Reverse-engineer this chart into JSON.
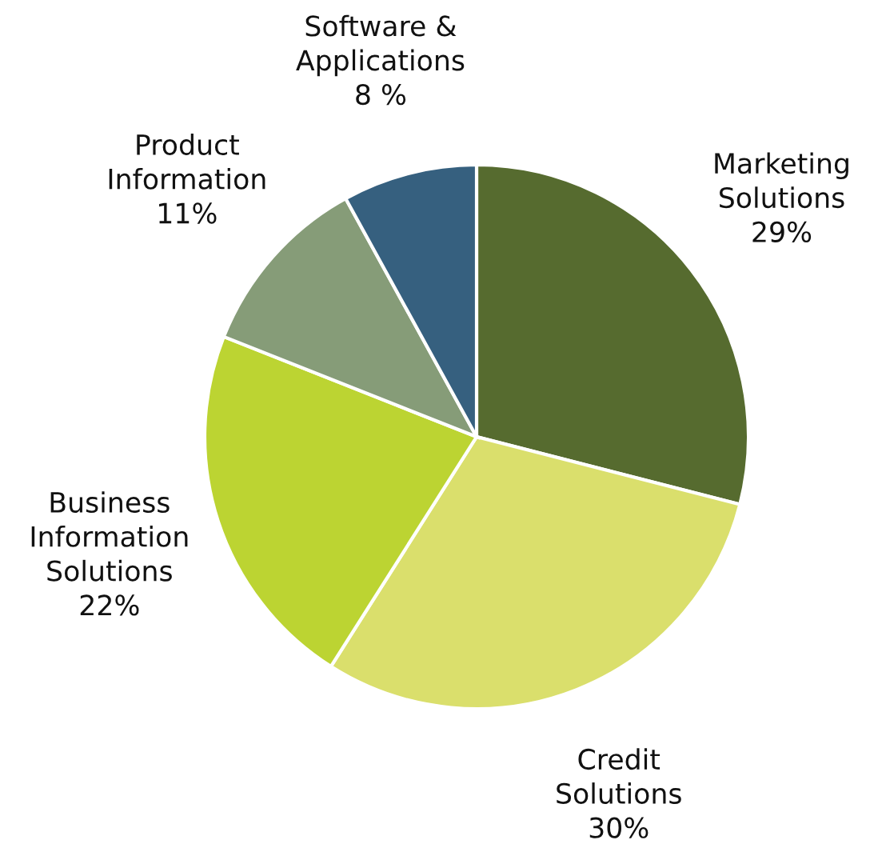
{
  "chart_data": {
    "type": "pie",
    "categories": [
      "Marketing Solutions",
      "Credit Solutions",
      "Business Information Solutions",
      "Product Information",
      "Software & Applications"
    ],
    "values": [
      29,
      30,
      22,
      11,
      8
    ],
    "value_labels": [
      "29%",
      "30%",
      "22%",
      "11%",
      "8 %"
    ],
    "colors": [
      "#566b2f",
      "#dadf6c",
      "#bcd432",
      "#869c78",
      "#36607f"
    ],
    "legend": false
  }
}
